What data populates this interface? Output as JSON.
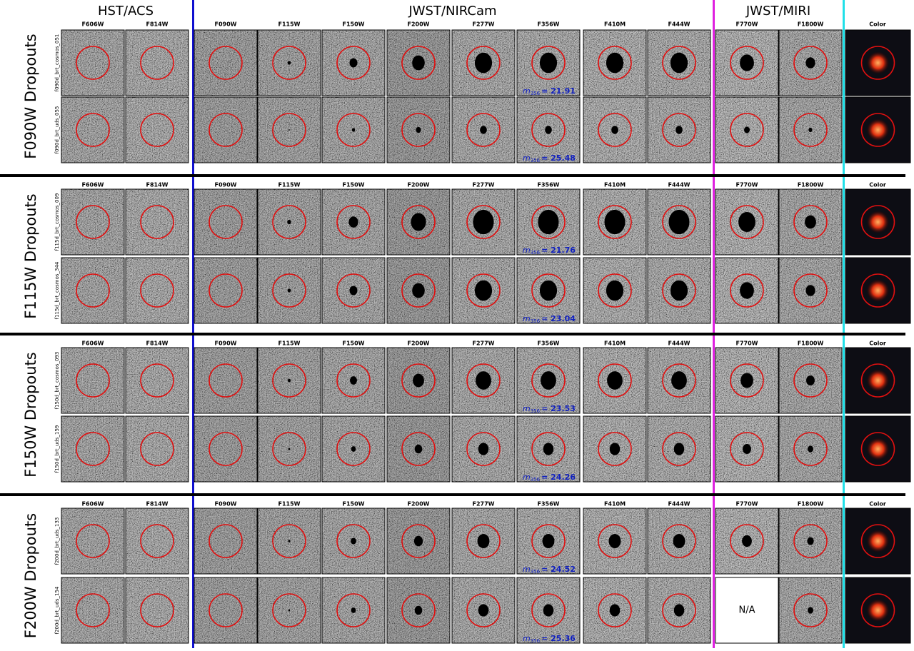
{
  "instruments": [
    {
      "name": "HST/ACS"
    },
    {
      "name": "JWST/NIRCam"
    },
    {
      "name": "JWST/MIRI"
    }
  ],
  "groups": [
    {
      "label": "F090W Dropouts",
      "filters": [
        "F606W",
        "F814W",
        "F090W",
        "F115W",
        "F150W",
        "F200W",
        "F277W",
        "F356W",
        "F410M",
        "F444W",
        "F770W",
        "F1800W",
        "Color"
      ],
      "objects": [
        {
          "id": "f090d_brt_cosmos_051",
          "mag_symbol": "m",
          "mag_band": "356",
          "mag_text": "= 21.91"
        },
        {
          "id": "f090d_brt_uds_055",
          "mag_symbol": "m",
          "mag_band": "356",
          "mag_text": "= 25.48"
        }
      ]
    },
    {
      "label": "F115W Dropouts",
      "filters": [
        "F606W",
        "F814W",
        "F090W",
        "F115W",
        "F150W",
        "F200W",
        "F277W",
        "F356W",
        "F410M",
        "F444W",
        "F770W",
        "F1800W",
        "Color"
      ],
      "objects": [
        {
          "id": "f115d_brt_cosmos_009",
          "mag_symbol": "m",
          "mag_band": "356",
          "mag_text": "= 21.76"
        },
        {
          "id": "f115d_brt_cosmos_344",
          "mag_symbol": "m",
          "mag_band": "356",
          "mag_text": "= 23.04"
        }
      ]
    },
    {
      "label": "F150W Dropouts",
      "filters": [
        "F606W",
        "F814W",
        "F090W",
        "F115W",
        "F150W",
        "F200W",
        "F277W",
        "F356W",
        "F410M",
        "F444W",
        "F770W",
        "F1800W",
        "Color"
      ],
      "objects": [
        {
          "id": "f150d_brt_cosmos_093",
          "mag_symbol": "m",
          "mag_band": "356",
          "mag_text": "= 23.53"
        },
        {
          "id": "f150d_brt_uds_159",
          "mag_symbol": "m",
          "mag_band": "356",
          "mag_text": "= 24.26"
        }
      ]
    },
    {
      "label": "F200W Dropouts",
      "filters": [
        "F606W",
        "F814W",
        "F090W",
        "F115W",
        "F150W",
        "F200W",
        "F277W",
        "F356W",
        "F410M",
        "F444W",
        "F770W",
        "F1800W",
        "Color"
      ],
      "objects": [
        {
          "id": "f200d_brt_uds_133",
          "mag_symbol": "m",
          "mag_band": "356",
          "mag_text": "= 24.52"
        },
        {
          "id": "f200d_brt_uds_154",
          "mag_symbol": "m",
          "mag_band": "356",
          "mag_text": "= 25.36",
          "cells": {
            "F770W": "N/A"
          }
        }
      ]
    }
  ]
}
